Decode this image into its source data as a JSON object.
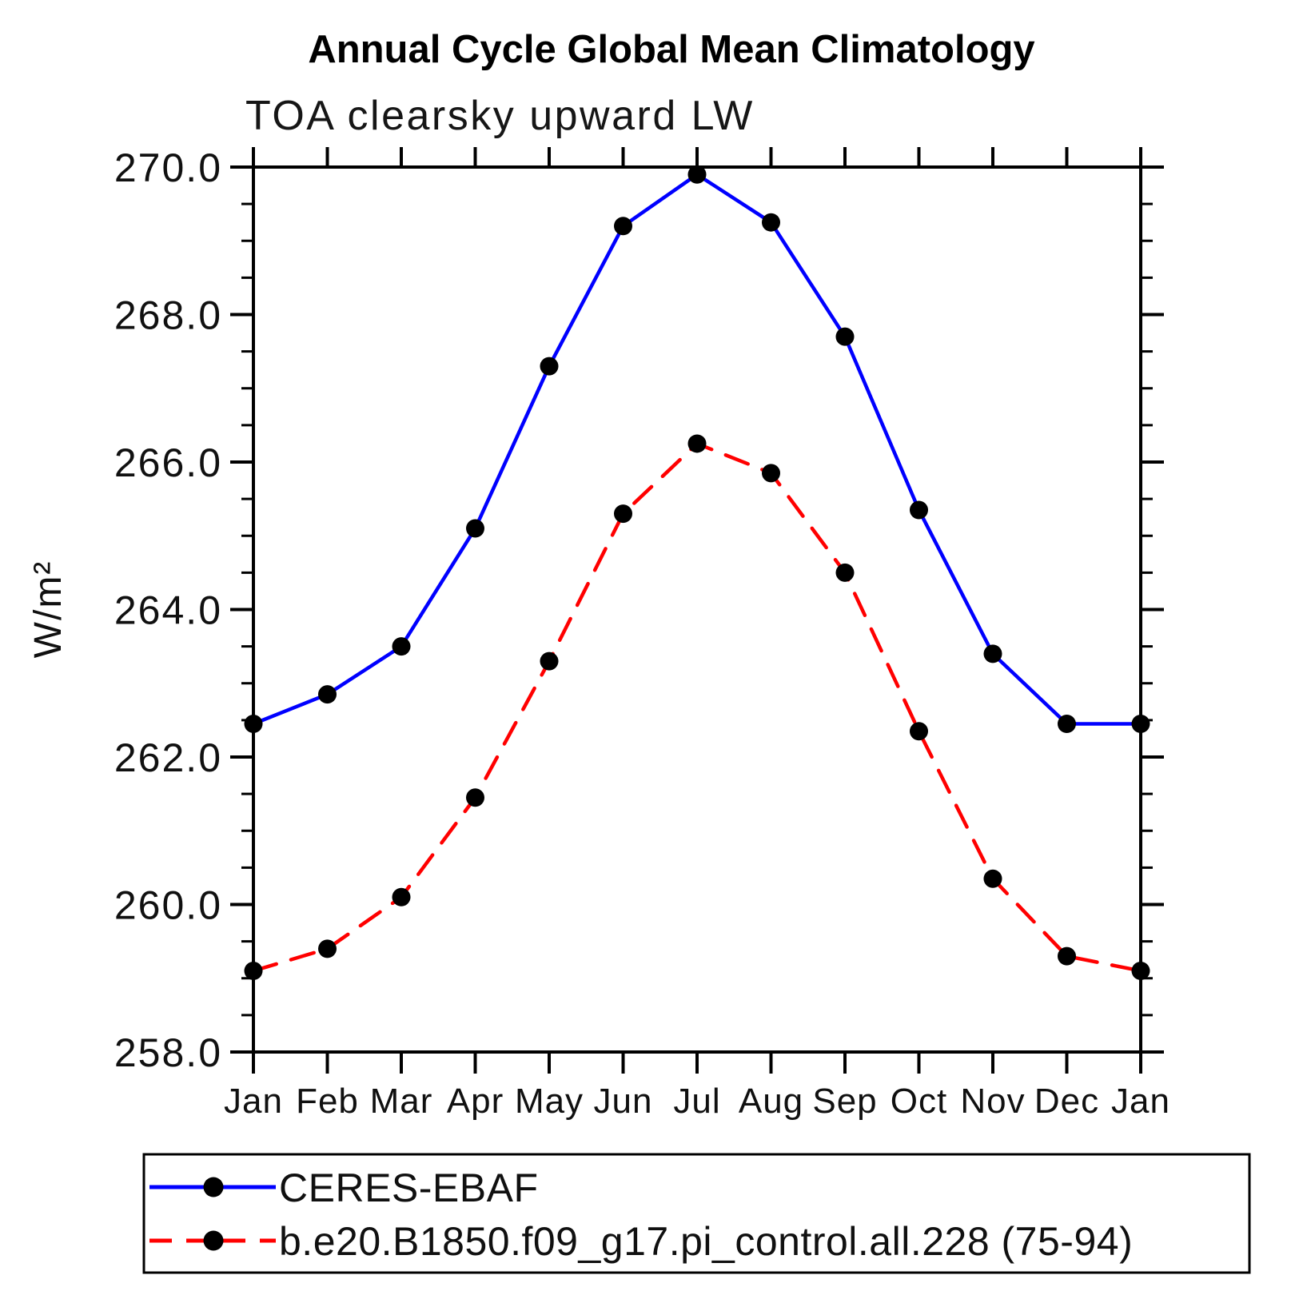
{
  "header": {
    "title": "Annual Cycle Global Mean Climatology",
    "subtitle": "TOA clearsky upward LW"
  },
  "chart_data": {
    "type": "line",
    "title": "Annual Cycle Global Mean Climatology",
    "subtitle": "TOA clearsky upward LW",
    "xlabel": "",
    "ylabel": "W/m²",
    "categories": [
      "Jan",
      "Feb",
      "Mar",
      "Apr",
      "May",
      "Jun",
      "Jul",
      "Aug",
      "Sep",
      "Oct",
      "Nov",
      "Dec",
      "Jan"
    ],
    "ylim": [
      258.0,
      270.0
    ],
    "ytick_labels": [
      "258.0",
      "260.0",
      "262.0",
      "264.0",
      "266.0",
      "268.0",
      "270.0"
    ],
    "ytick_major_step": 2.0,
    "ytick_minor_step": 0.5,
    "grid": false,
    "legend_position": "bottom-left-box",
    "series": [
      {
        "name": "CERES-EBAF",
        "color": "#0000ff",
        "line_style": "solid",
        "marker": "filled-circle",
        "marker_color": "#000000",
        "values": [
          262.45,
          262.85,
          263.5,
          265.1,
          267.3,
          269.2,
          269.9,
          269.25,
          267.7,
          265.35,
          263.4,
          262.45,
          262.45
        ]
      },
      {
        "name": "b.e20.B1850.f09_g17.pi_control.all.228 (75-94)",
        "color": "#ff0000",
        "line_style": "dashed",
        "marker": "filled-circle",
        "marker_color": "#000000",
        "values": [
          259.1,
          259.4,
          260.1,
          261.45,
          263.3,
          265.3,
          266.25,
          265.85,
          264.5,
          262.35,
          260.35,
          259.3,
          259.1
        ]
      }
    ]
  }
}
